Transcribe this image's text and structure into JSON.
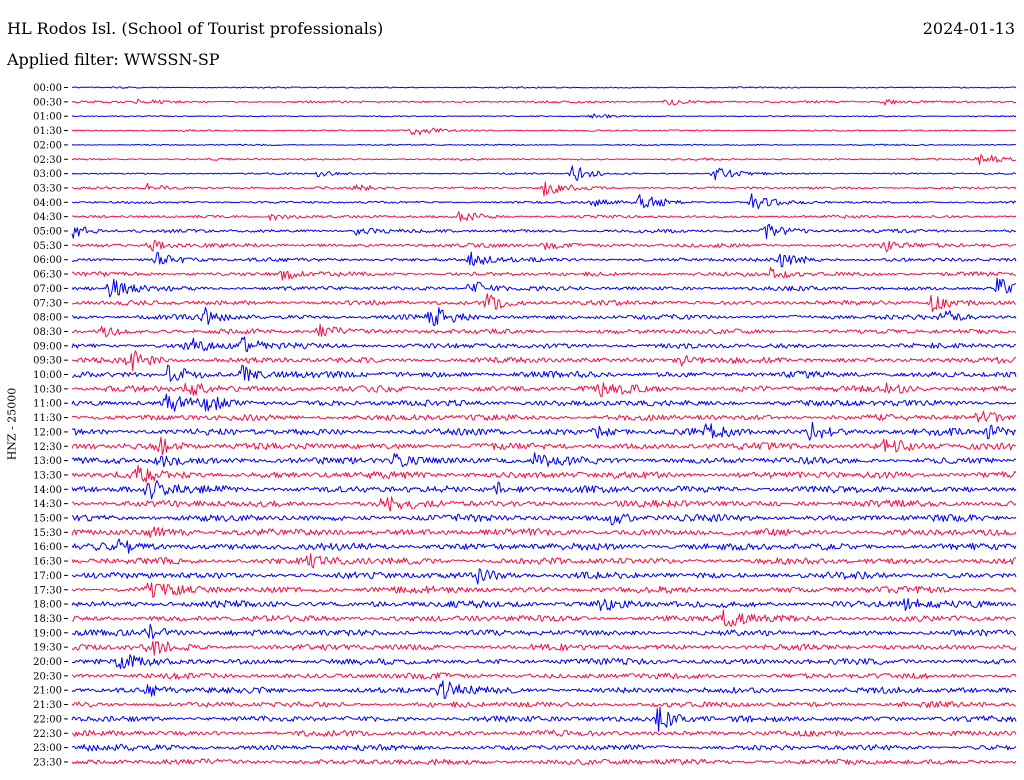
{
  "header": {
    "station": "HL Rodos Isl. (School of Tourist professionals)",
    "date": "2024-01-13",
    "filter": "Applied filter: WWSSN-SP"
  },
  "axis": {
    "channel_label": "HNZ - 25000"
  },
  "chart_data": {
    "type": "line",
    "title": "HL Rodos Isl. (School of Tourist professionals)",
    "subtitle": "Applied filter: WWSSN-SP",
    "date": "2024-01-13",
    "ylabel": "HNZ - 25000",
    "row_labels": [
      "00:00",
      "00:30",
      "01:00",
      "01:30",
      "02:00",
      "02:30",
      "03:00",
      "03:30",
      "04:00",
      "04:30",
      "05:00",
      "05:30",
      "06:00",
      "06:30",
      "07:00",
      "07:30",
      "08:00",
      "08:30",
      "09:00",
      "09:30",
      "10:00",
      "10:30",
      "11:00",
      "11:30",
      "12:00",
      "12:30",
      "13:00",
      "13:30",
      "14:00",
      "14:30",
      "15:00",
      "15:30",
      "16:00",
      "16:30",
      "17:00",
      "17:30",
      "18:00",
      "18:30",
      "19:00",
      "19:30",
      "20:00",
      "20:30",
      "21:00",
      "21:30",
      "22:00",
      "22:30",
      "23:00",
      "23:30"
    ],
    "colors": [
      "#0000ee",
      "#ee1144"
    ],
    "noise_level": [
      0.6,
      0.9,
      0.5,
      0.7,
      0.6,
      0.8,
      0.7,
      1.0,
      1.0,
      1.2,
      1.4,
      1.6,
      1.6,
      1.8,
      1.8,
      2.0,
      2.0,
      2.0,
      2.2,
      2.4,
      2.6,
      2.6,
      2.6,
      2.6,
      2.8,
      2.8,
      2.8,
      3.0,
      3.0,
      2.8,
      2.8,
      3.0,
      3.0,
      2.8,
      2.8,
      2.8,
      2.8,
      2.6,
      2.6,
      2.6,
      2.6,
      2.4,
      2.6,
      2.4,
      2.4,
      2.4,
      2.4,
      2.4
    ],
    "events": [
      {
        "row": 1,
        "x": 0.07,
        "amp": 4
      },
      {
        "row": 1,
        "x": 0.63,
        "amp": 4
      },
      {
        "row": 1,
        "x": 0.86,
        "amp": 3
      },
      {
        "row": 2,
        "x": 0.55,
        "amp": 3
      },
      {
        "row": 3,
        "x": 0.36,
        "amp": 6
      },
      {
        "row": 5,
        "x": 0.96,
        "amp": 8
      },
      {
        "row": 6,
        "x": 0.53,
        "amp": 10
      },
      {
        "row": 6,
        "x": 0.68,
        "amp": 8
      },
      {
        "row": 6,
        "x": 0.26,
        "amp": 3
      },
      {
        "row": 7,
        "x": 0.08,
        "amp": 4
      },
      {
        "row": 7,
        "x": 0.3,
        "amp": 4
      },
      {
        "row": 7,
        "x": 0.5,
        "amp": 8
      },
      {
        "row": 8,
        "x": 0.6,
        "amp": 12
      },
      {
        "row": 8,
        "x": 0.72,
        "amp": 8
      },
      {
        "row": 8,
        "x": 0.55,
        "amp": 4
      },
      {
        "row": 9,
        "x": 0.21,
        "amp": 5
      },
      {
        "row": 9,
        "x": 0.41,
        "amp": 6
      },
      {
        "row": 10,
        "x": 0.0,
        "amp": 7
      },
      {
        "row": 10,
        "x": 0.73,
        "amp": 10
      },
      {
        "row": 10,
        "x": 0.3,
        "amp": 4
      },
      {
        "row": 11,
        "x": 0.08,
        "amp": 7
      },
      {
        "row": 11,
        "x": 0.5,
        "amp": 4
      },
      {
        "row": 11,
        "x": 0.86,
        "amp": 6
      },
      {
        "row": 12,
        "x": 0.09,
        "amp": 8
      },
      {
        "row": 12,
        "x": 0.42,
        "amp": 8
      },
      {
        "row": 12,
        "x": 0.75,
        "amp": 9
      },
      {
        "row": 13,
        "x": 0.22,
        "amp": 6
      },
      {
        "row": 13,
        "x": 0.74,
        "amp": 5
      },
      {
        "row": 14,
        "x": 0.04,
        "amp": 10
      },
      {
        "row": 14,
        "x": 0.42,
        "amp": 10
      },
      {
        "row": 14,
        "x": 0.98,
        "amp": 10
      },
      {
        "row": 15,
        "x": 0.44,
        "amp": 8
      },
      {
        "row": 15,
        "x": 0.91,
        "amp": 9
      },
      {
        "row": 16,
        "x": 0.14,
        "amp": 10
      },
      {
        "row": 16,
        "x": 0.38,
        "amp": 12
      },
      {
        "row": 16,
        "x": 0.92,
        "amp": 9
      },
      {
        "row": 17,
        "x": 0.26,
        "amp": 9
      },
      {
        "row": 17,
        "x": 0.03,
        "amp": 5
      },
      {
        "row": 18,
        "x": 0.12,
        "amp": 10
      },
      {
        "row": 18,
        "x": 0.18,
        "amp": 8
      },
      {
        "row": 19,
        "x": 0.06,
        "amp": 10
      },
      {
        "row": 19,
        "x": 0.64,
        "amp": 7
      },
      {
        "row": 20,
        "x": 0.1,
        "amp": 9
      },
      {
        "row": 20,
        "x": 0.18,
        "amp": 8
      },
      {
        "row": 21,
        "x": 0.12,
        "amp": 9
      },
      {
        "row": 21,
        "x": 0.56,
        "amp": 7
      },
      {
        "row": 21,
        "x": 0.86,
        "amp": 6
      },
      {
        "row": 22,
        "x": 0.1,
        "amp": 8
      },
      {
        "row": 22,
        "x": 0.14,
        "amp": 7
      },
      {
        "row": 23,
        "x": 0.96,
        "amp": 7
      },
      {
        "row": 24,
        "x": 0.55,
        "amp": 7
      },
      {
        "row": 24,
        "x": 0.67,
        "amp": 8
      },
      {
        "row": 24,
        "x": 0.78,
        "amp": 9
      },
      {
        "row": 24,
        "x": 0.97,
        "amp": 7
      },
      {
        "row": 25,
        "x": 0.09,
        "amp": 9
      },
      {
        "row": 25,
        "x": 0.86,
        "amp": 10
      },
      {
        "row": 26,
        "x": 0.09,
        "amp": 8
      },
      {
        "row": 26,
        "x": 0.34,
        "amp": 8
      },
      {
        "row": 26,
        "x": 0.49,
        "amp": 6
      },
      {
        "row": 27,
        "x": 0.07,
        "amp": 6
      },
      {
        "row": 28,
        "x": 0.08,
        "amp": 11
      },
      {
        "row": 28,
        "x": 0.45,
        "amp": 6
      },
      {
        "row": 29,
        "x": 0.33,
        "amp": 8
      },
      {
        "row": 30,
        "x": 0.57,
        "amp": 6
      },
      {
        "row": 31,
        "x": 0.08,
        "amp": 8
      },
      {
        "row": 32,
        "x": 0.05,
        "amp": 8
      },
      {
        "row": 33,
        "x": 0.25,
        "amp": 8
      },
      {
        "row": 34,
        "x": 0.43,
        "amp": 7
      },
      {
        "row": 35,
        "x": 0.08,
        "amp": 8
      },
      {
        "row": 36,
        "x": 0.56,
        "amp": 6
      },
      {
        "row": 36,
        "x": 0.88,
        "amp": 6
      },
      {
        "row": 37,
        "x": 0.69,
        "amp": 10
      },
      {
        "row": 38,
        "x": 0.08,
        "amp": 8
      },
      {
        "row": 39,
        "x": 0.08,
        "amp": 8
      },
      {
        "row": 40,
        "x": 0.05,
        "amp": 8
      },
      {
        "row": 42,
        "x": 0.08,
        "amp": 6
      },
      {
        "row": 42,
        "x": 0.39,
        "amp": 10
      },
      {
        "row": 44,
        "x": 0.62,
        "amp": 12
      },
      {
        "row": 46,
        "x": 0.01,
        "amp": 5
      }
    ]
  }
}
